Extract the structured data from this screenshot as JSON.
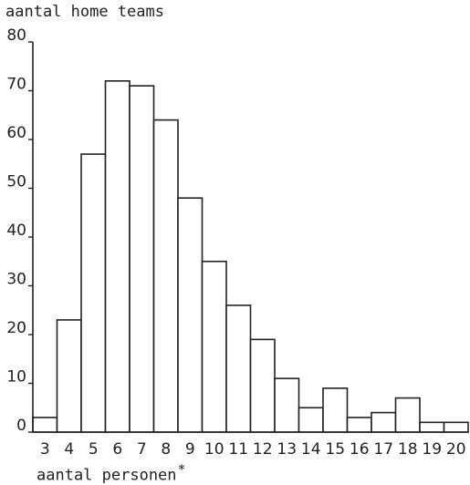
{
  "chart_data": {
    "type": "bar",
    "title": "",
    "ylabel": "aantal home teams",
    "xlabel": "aantal personen",
    "xlabel_mark": "*",
    "ylim": [
      0,
      80
    ],
    "y_ticks": [
      0,
      10,
      20,
      30,
      40,
      50,
      60,
      70,
      80
    ],
    "categories": [
      "3",
      "4",
      "5",
      "6",
      "7",
      "8",
      "9",
      "10",
      "11",
      "12",
      "13",
      "14",
      "15",
      "16",
      "17",
      "18",
      "19",
      "20"
    ],
    "values": [
      3,
      23,
      57,
      72,
      71,
      64,
      48,
      35,
      26,
      19,
      11,
      5,
      9,
      3,
      4,
      7,
      2,
      2
    ],
    "grid": false,
    "bar_fill": "#ffffff",
    "bar_stroke": "#222222"
  }
}
